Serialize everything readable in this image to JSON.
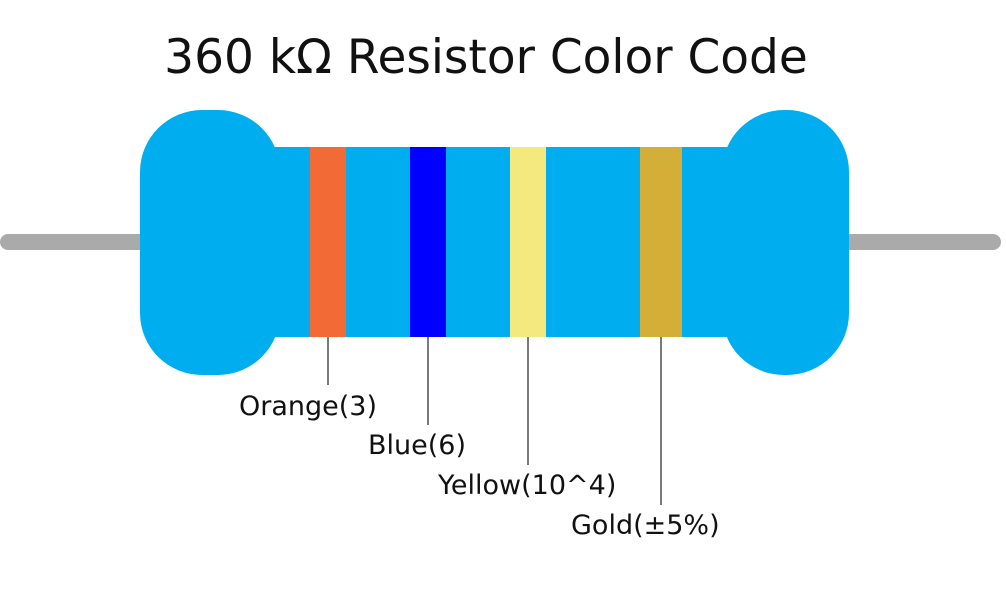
{
  "title": "360 kΩ Resistor Color Code",
  "colors": {
    "body": "#00aeef",
    "lead": "#aaaaab",
    "leader_line": "#222222"
  },
  "bands": [
    {
      "name": "orange",
      "label": "Orange(3)",
      "color": "#f26a35"
    },
    {
      "name": "blue",
      "label": "Blue(6)",
      "color": "#0000ff"
    },
    {
      "name": "yellow",
      "label": "Yellow(10^4)",
      "color": "#f4e97f"
    },
    {
      "name": "gold",
      "label": "Gold(±5%)",
      "color": "#d4af37"
    }
  ]
}
